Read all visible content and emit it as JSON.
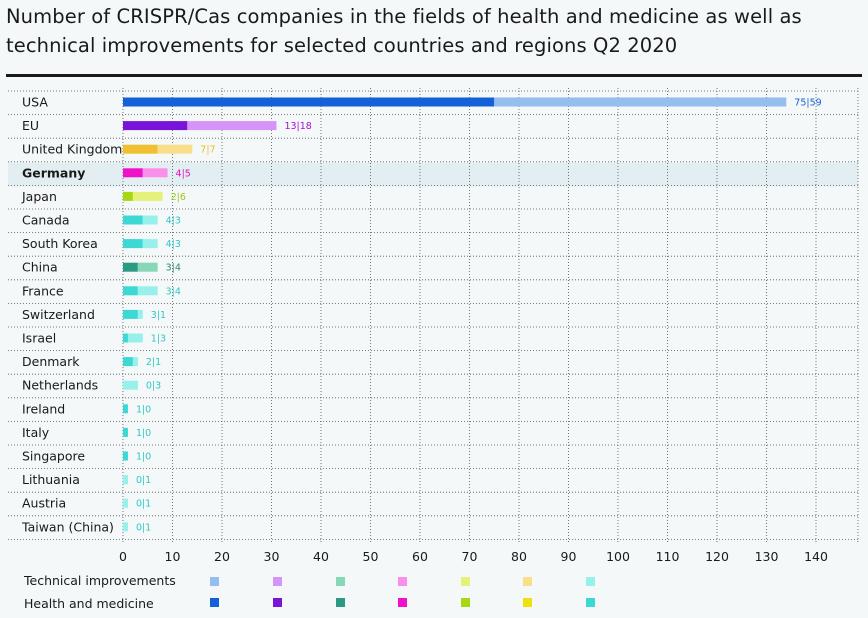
{
  "title": "Number of CRISPR/Cas companies in the fields of health and medicine as well as technical improvements for selected countries and regions Q2 2020",
  "chart_data": {
    "type": "bar",
    "orientation": "horizontal",
    "stacked": true,
    "title": "Number of CRISPR/Cas companies in the fields of health and medicine as well as technical improvements for selected countries and regions Q2 2020",
    "xlim": [
      0,
      145
    ],
    "xticks": [
      0,
      10,
      20,
      30,
      40,
      50,
      60,
      70,
      80,
      90,
      100,
      110,
      120,
      130,
      140
    ],
    "grid": true,
    "legend_position": "bottom",
    "categories": [
      "USA",
      "EU",
      "United Kingdom",
      "Germany",
      "Japan",
      "Canada",
      "South Korea",
      "China",
      "France",
      "Switzerland",
      "Israel",
      "Denmark",
      "Netherlands",
      "Ireland",
      "Italy",
      "Singapore",
      "Lithuania",
      "Austria",
      "Taiwan (China)"
    ],
    "highlighted_category": "Germany",
    "series": [
      {
        "name": "Health and medicine",
        "values": [
          75,
          13,
          7,
          4,
          2,
          4,
          4,
          3,
          3,
          3,
          1,
          2,
          0,
          1,
          1,
          1,
          0,
          0,
          0
        ]
      },
      {
        "name": "Technical improvements",
        "values": [
          59,
          18,
          7,
          5,
          6,
          3,
          3,
          4,
          4,
          1,
          3,
          1,
          3,
          0,
          0,
          0,
          1,
          1,
          1
        ]
      }
    ],
    "value_labels": [
      "75|59",
      "13|18",
      "7|7",
      "4|5",
      "2|6",
      "4|3",
      "4|3",
      "3|4",
      "3|4",
      "3|1",
      "1|3",
      "2|1",
      "0|3",
      "1|0",
      "1|0",
      "1|0",
      "0|1",
      "0|1",
      "0|1"
    ],
    "dark_colors": [
      "#1460d8",
      "#7a14d8",
      "#f0c030",
      "#f012c8",
      "#a8d814",
      "#3cd8d4",
      "#3cd8d4",
      "#2a9a82",
      "#3cd8d4",
      "#3cd8d4",
      "#3cd8d4",
      "#3cd8d4",
      "#3cd8d4",
      "#3cd8d4",
      "#3cd8d4",
      "#3cd8d4",
      "#3cd8d4",
      "#3cd8d4",
      "#3cd8d4"
    ],
    "light_colors": [
      "#94bdf0",
      "#d694f8",
      "#f8e08a",
      "#f890ea",
      "#e4f27a",
      "#98f0ea",
      "#98f0ea",
      "#88d8b8",
      "#98f0ea",
      "#98f0ea",
      "#98f0ea",
      "#98f0ea",
      "#98f0ea",
      "#98f0ea",
      "#98f0ea",
      "#98f0ea",
      "#98f0ea",
      "#98f0ea",
      "#98f0ea"
    ],
    "label_colors": [
      "#1460d8",
      "#a014d8",
      "#e8c020",
      "#e012c0",
      "#a0c814",
      "#30c8c4",
      "#30c8c4",
      "#2a8a78",
      "#30c8c4",
      "#30c8c4",
      "#30c8c4",
      "#30c8c4",
      "#30c8c4",
      "#30c8c4",
      "#30c8c4",
      "#30c8c4",
      "#30c8c4",
      "#30c8c4",
      "#30c8c4"
    ],
    "legend": {
      "technical_label": "Technical improvements",
      "health_label": "Health and medicine",
      "technical_swatches": [
        "#94bdf0",
        "#d694f8",
        "#88d8b8",
        "#f890ea",
        "#e4f27a",
        "#f8e08a",
        "#98f0ea"
      ],
      "health_swatches": [
        "#1460d8",
        "#7a14d8",
        "#2a9a82",
        "#f012c8",
        "#a8d814",
        "#f0e010",
        "#3cd8d4"
      ]
    }
  }
}
